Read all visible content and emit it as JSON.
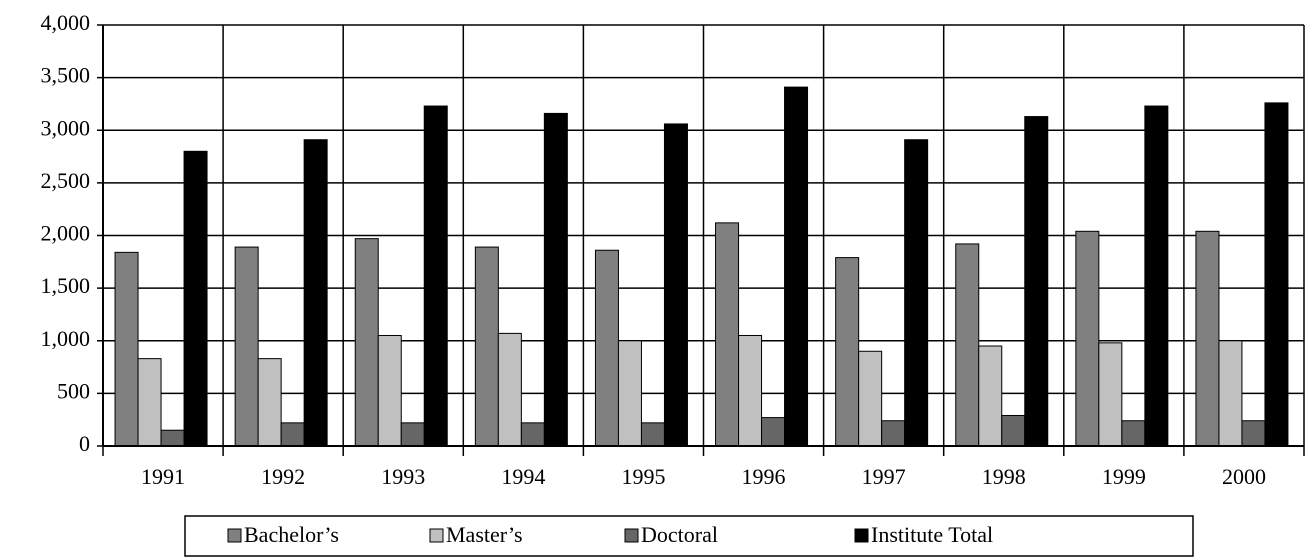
{
  "chart_data": {
    "type": "bar",
    "categories": [
      "1991",
      "1992",
      "1993",
      "1994",
      "1995",
      "1996",
      "1997",
      "1998",
      "1999",
      "2000"
    ],
    "series": [
      {
        "name": "Bachelor’s",
        "color": "#808080",
        "values": [
          1840,
          1890,
          1970,
          1890,
          1860,
          2120,
          1790,
          1920,
          2040,
          2040
        ]
      },
      {
        "name": "Master’s",
        "color": "#c0c0c0",
        "values": [
          830,
          830,
          1050,
          1070,
          1000,
          1050,
          900,
          950,
          980,
          1000
        ]
      },
      {
        "name": "Doctoral",
        "color": "#666666",
        "values": [
          150,
          220,
          220,
          220,
          220,
          270,
          240,
          290,
          240,
          240
        ]
      },
      {
        "name": "Institute Total",
        "color": "#000000",
        "values": [
          2800,
          2910,
          3230,
          3160,
          3060,
          3410,
          2910,
          3130,
          3230,
          3260
        ]
      }
    ],
    "ylim": [
      0,
      4000
    ],
    "yticks": [
      0,
      500,
      {
        "value": 1000,
        "label": "1,000"
      },
      {
        "value": 1500,
        "label": "1,500"
      },
      {
        "value": 2000,
        "label": "2,000"
      },
      {
        "value": 2500,
        "label": "2,500"
      },
      {
        "value": 3000,
        "label": "3,000"
      },
      {
        "value": 3500,
        "label": "3,500"
      },
      {
        "value": 4000,
        "label": "4,000"
      }
    ],
    "grid": true,
    "legend": "bottom"
  }
}
